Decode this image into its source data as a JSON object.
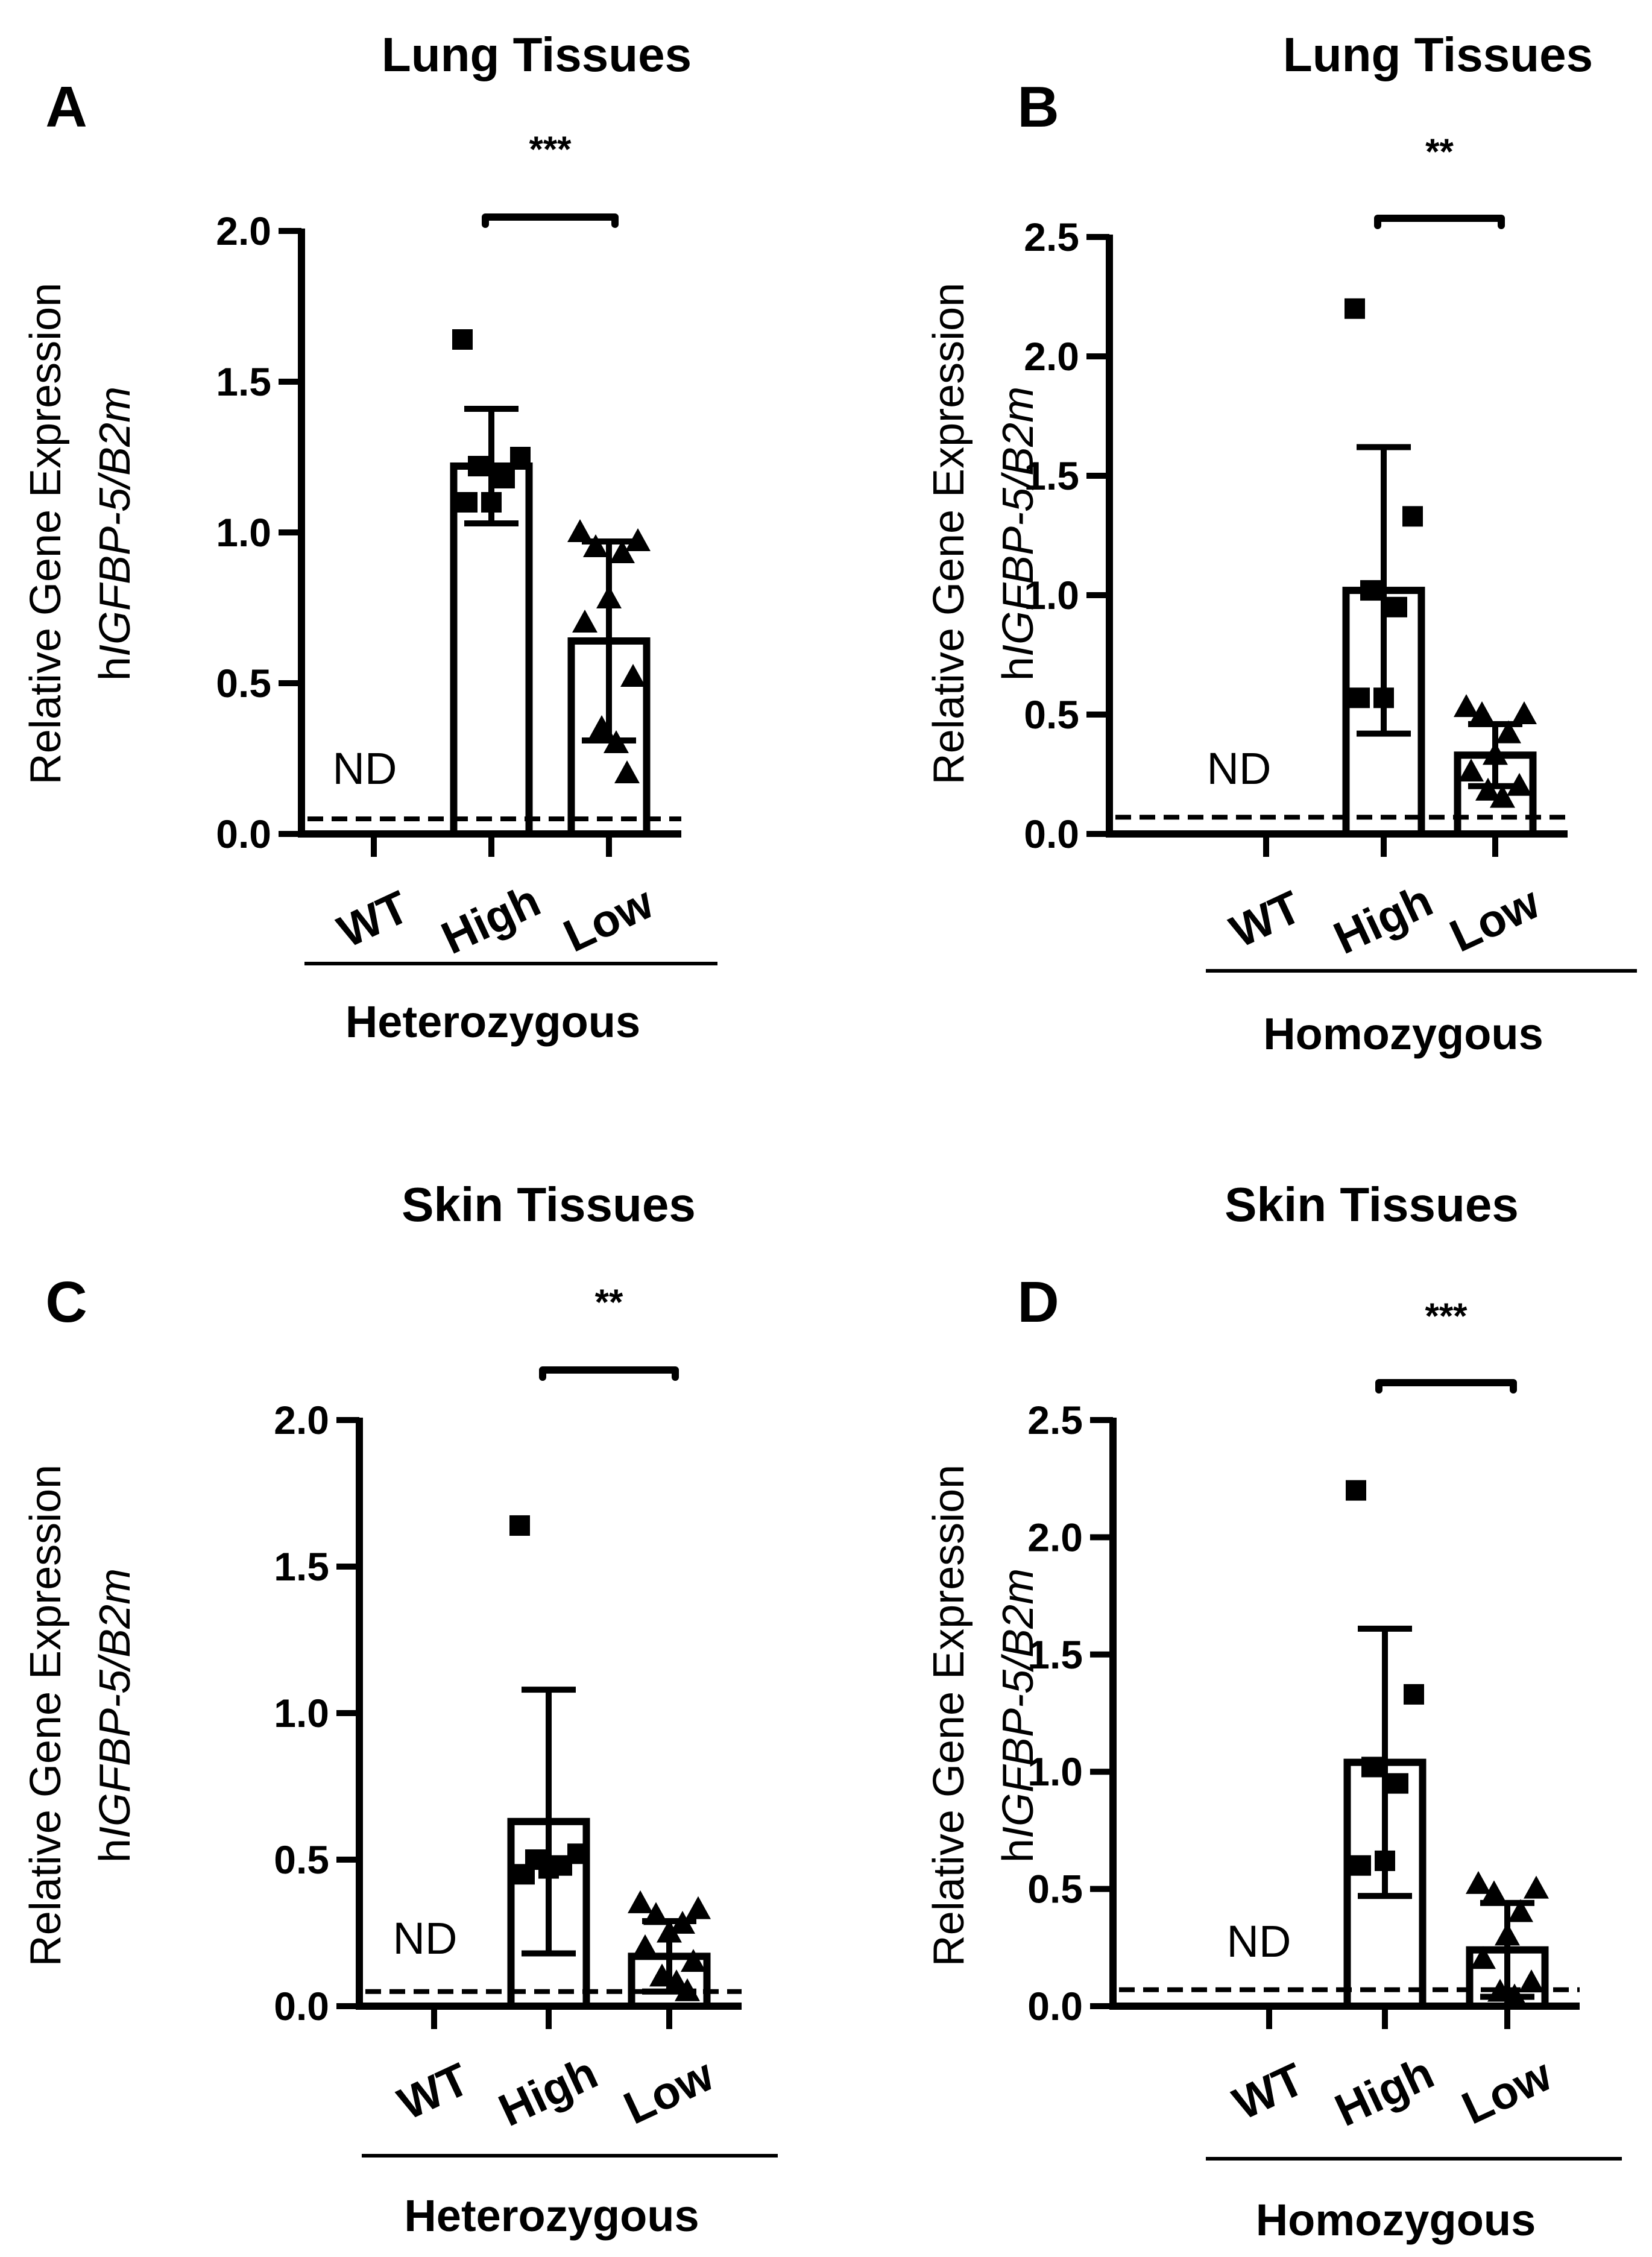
{
  "chart_data": [
    {
      "panel": "A",
      "type": "bar",
      "title": "Lung Tissues",
      "ylabel_line1": "Relative Gene Expression",
      "ylabel_line2_prefix": "h",
      "ylabel_line2_italic": "IGFBP-5/B2m",
      "ylim": [
        0,
        2.0
      ],
      "yticks": [
        0.0,
        0.5,
        1.0,
        1.5,
        2.0
      ],
      "ytick_labels": [
        "0.0",
        "0.5",
        "1.0",
        "1.5",
        "2.0"
      ],
      "categories": [
        "WT",
        "High",
        "Low"
      ],
      "group_label": "Heterozygous",
      "detection_limit": 0.05,
      "nd_label": "ND",
      "significance": "***",
      "bars": [
        {
          "category": "WT",
          "value": null,
          "error": null,
          "marker": "none",
          "points": []
        },
        {
          "category": "High",
          "value": 1.22,
          "error": 0.19,
          "marker": "square",
          "points": [
            1.64,
            1.25,
            1.22,
            1.18,
            1.1,
            1.1
          ]
        },
        {
          "category": "Low",
          "value": 0.64,
          "error": 0.33,
          "marker": "triangle",
          "points": [
            1.0,
            0.97,
            0.95,
            0.93,
            0.78,
            0.7,
            0.52,
            0.35,
            0.3,
            0.2
          ]
        }
      ]
    },
    {
      "panel": "B",
      "type": "bar",
      "title": "Lung Tissues",
      "ylabel_line1": "Relative Gene Expression",
      "ylabel_line2_prefix": "h",
      "ylabel_line2_italic": "IGFBP-5/B2m",
      "ylim": [
        0,
        2.5
      ],
      "yticks": [
        0.0,
        0.5,
        1.0,
        1.5,
        2.0,
        2.5
      ],
      "ytick_labels": [
        "0.0",
        "0.5",
        "1.0",
        "1.5",
        "2.0",
        "2.5"
      ],
      "categories": [
        "WT",
        "High",
        "Low"
      ],
      "group_label": "Homozygous",
      "detection_limit": 0.07,
      "nd_label": "ND",
      "significance": "**",
      "bars": [
        {
          "category": "WT",
          "value": null,
          "error": null,
          "marker": "none",
          "points": []
        },
        {
          "category": "High",
          "value": 1.02,
          "error": 0.6,
          "marker": "square",
          "points": [
            2.2,
            1.33,
            1.02,
            0.95,
            0.57,
            0.57
          ]
        },
        {
          "category": "Low",
          "value": 0.33,
          "error": 0.13,
          "marker": "triangle",
          "points": [
            0.53,
            0.5,
            0.5,
            0.42,
            0.33,
            0.26,
            0.2,
            0.18,
            0.15
          ]
        }
      ]
    },
    {
      "panel": "C",
      "type": "bar",
      "title": "Skin Tissues",
      "ylabel_line1": "Relative Gene Expression",
      "ylabel_line2_prefix": "h",
      "ylabel_line2_italic": "IGFBP-5/B2m",
      "ylim": [
        0,
        2.0
      ],
      "yticks": [
        0.0,
        0.5,
        1.0,
        1.5,
        2.0
      ],
      "ytick_labels": [
        "0.0",
        "0.5",
        "1.0",
        "1.5",
        "2.0"
      ],
      "categories": [
        "WT",
        "High",
        "Low"
      ],
      "group_label": "Heterozygous",
      "detection_limit": 0.05,
      "nd_label": "ND",
      "significance": "**",
      "bars": [
        {
          "category": "WT",
          "value": null,
          "error": null,
          "marker": "none",
          "points": []
        },
        {
          "category": "High",
          "value": 0.63,
          "error": 0.45,
          "marker": "square",
          "points": [
            1.64,
            0.52,
            0.5,
            0.48,
            0.47,
            0.45
          ]
        },
        {
          "category": "Low",
          "value": 0.17,
          "error": 0.12,
          "marker": "triangle",
          "points": [
            0.35,
            0.33,
            0.31,
            0.28,
            0.25,
            0.2,
            0.15,
            0.1,
            0.08,
            0.05
          ]
        }
      ]
    },
    {
      "panel": "D",
      "type": "bar",
      "title": "Skin Tissues",
      "ylabel_line1": "Relative Gene Expression",
      "ylabel_line2_prefix": "h",
      "ylabel_line2_italic": "IGFBP-5/B2m",
      "ylim": [
        0,
        2.5
      ],
      "yticks": [
        0.0,
        0.5,
        1.0,
        1.5,
        2.0,
        2.5
      ],
      "ytick_labels": [
        "0.0",
        "0.5",
        "1.0",
        "1.5",
        "2.0",
        "2.5"
      ],
      "categories": [
        "WT",
        "High",
        "Low"
      ],
      "group_label": "Homozygous",
      "detection_limit": 0.07,
      "nd_label": "ND",
      "significance": "***",
      "bars": [
        {
          "category": "WT",
          "value": null,
          "error": null,
          "marker": "none",
          "points": []
        },
        {
          "category": "High",
          "value": 1.04,
          "error": 0.57,
          "marker": "square",
          "points": [
            2.2,
            1.33,
            1.02,
            0.95,
            0.62,
            0.6
          ]
        },
        {
          "category": "Low",
          "value": 0.24,
          "error": 0.2,
          "marker": "triangle",
          "points": [
            0.52,
            0.5,
            0.48,
            0.4,
            0.3,
            0.2,
            0.1,
            0.06,
            0.04
          ]
        }
      ]
    }
  ]
}
